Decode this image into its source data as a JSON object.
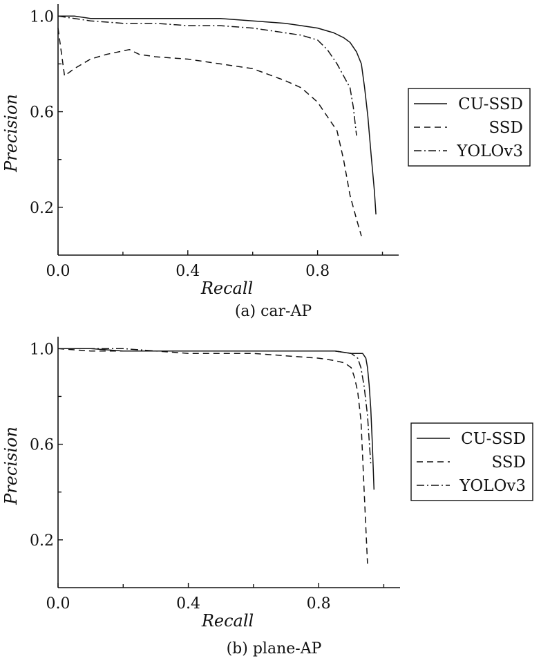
{
  "chart_data": [
    {
      "type": "line",
      "caption": "(a) car-AP",
      "xlabel": "Recall",
      "ylabel": "Precision",
      "xlim": [
        0,
        1.05
      ],
      "ylim": [
        0.0,
        1.05
      ],
      "xticks": [
        0.0,
        0.4,
        0.8
      ],
      "xtick_labels": [
        "0.0",
        "0.4",
        "0.8"
      ],
      "yticks": [
        0.2,
        0.6,
        1.0
      ],
      "ytick_labels": [
        "0.2",
        "0.6",
        "1.0"
      ],
      "legend_position": "right",
      "series": [
        {
          "name": "CU-SSD",
          "style": "solid",
          "x": [
            0.0,
            0.05,
            0.1,
            0.2,
            0.3,
            0.4,
            0.5,
            0.6,
            0.7,
            0.75,
            0.8,
            0.85,
            0.88,
            0.9,
            0.92,
            0.935,
            0.945,
            0.955,
            0.965,
            0.975,
            0.98
          ],
          "y": [
            1.0,
            1.0,
            0.99,
            0.99,
            0.99,
            0.99,
            0.99,
            0.98,
            0.97,
            0.96,
            0.95,
            0.93,
            0.91,
            0.89,
            0.85,
            0.8,
            0.7,
            0.58,
            0.42,
            0.27,
            0.17
          ]
        },
        {
          "name": "SSD",
          "style": "dashed",
          "x": [
            0.0,
            0.01,
            0.02,
            0.05,
            0.1,
            0.15,
            0.22,
            0.25,
            0.3,
            0.4,
            0.5,
            0.6,
            0.7,
            0.75,
            0.8,
            0.83,
            0.86,
            0.88,
            0.9,
            0.92,
            0.935
          ],
          "y": [
            0.95,
            0.85,
            0.75,
            0.78,
            0.82,
            0.84,
            0.86,
            0.84,
            0.83,
            0.82,
            0.8,
            0.78,
            0.73,
            0.7,
            0.64,
            0.58,
            0.52,
            0.4,
            0.25,
            0.15,
            0.08
          ]
        },
        {
          "name": "YOLOv3",
          "style": "dashdot",
          "x": [
            0.0,
            0.05,
            0.1,
            0.2,
            0.3,
            0.4,
            0.5,
            0.6,
            0.65,
            0.7,
            0.75,
            0.8,
            0.83,
            0.86,
            0.88,
            0.9,
            0.91,
            0.92
          ],
          "y": [
            1.0,
            0.99,
            0.98,
            0.97,
            0.97,
            0.96,
            0.96,
            0.95,
            0.94,
            0.93,
            0.92,
            0.9,
            0.86,
            0.8,
            0.75,
            0.7,
            0.62,
            0.5
          ]
        }
      ]
    },
    {
      "type": "line",
      "caption": "(b) plane-AP",
      "xlabel": "Recall",
      "ylabel": "Precision",
      "xlim": [
        0,
        1.05
      ],
      "ylim": [
        0.0,
        1.05
      ],
      "xticks": [
        0.0,
        0.4,
        0.8
      ],
      "xtick_labels": [
        "0.0",
        "0.4",
        "0.8"
      ],
      "yticks": [
        0.2,
        0.6,
        1.0
      ],
      "ytick_labels": [
        "0.2",
        "0.6",
        "1.0"
      ],
      "legend_position": "right",
      "series": [
        {
          "name": "CU-SSD",
          "style": "solid",
          "x": [
            0.0,
            0.1,
            0.2,
            0.3,
            0.4,
            0.5,
            0.6,
            0.7,
            0.8,
            0.85,
            0.9,
            0.92,
            0.935,
            0.945,
            0.95,
            0.955,
            0.96,
            0.965,
            0.97
          ],
          "y": [
            1.0,
            1.0,
            0.99,
            0.99,
            0.99,
            0.99,
            0.99,
            0.99,
            0.99,
            0.99,
            0.98,
            0.98,
            0.98,
            0.96,
            0.92,
            0.85,
            0.75,
            0.6,
            0.41
          ]
        },
        {
          "name": "SSD",
          "style": "dashed",
          "x": [
            0.0,
            0.1,
            0.2,
            0.3,
            0.4,
            0.5,
            0.6,
            0.7,
            0.8,
            0.85,
            0.88,
            0.9,
            0.91,
            0.92,
            0.93,
            0.935,
            0.94,
            0.945,
            0.95
          ],
          "y": [
            1.0,
            0.99,
            0.99,
            0.99,
            0.98,
            0.98,
            0.98,
            0.97,
            0.96,
            0.95,
            0.94,
            0.92,
            0.88,
            0.82,
            0.7,
            0.55,
            0.4,
            0.25,
            0.1
          ]
        },
        {
          "name": "YOLOv3",
          "style": "dashdot",
          "x": [
            0.0,
            0.1,
            0.2,
            0.3,
            0.4,
            0.5,
            0.55,
            0.6,
            0.7,
            0.8,
            0.85,
            0.9,
            0.92,
            0.93,
            0.94,
            0.95,
            0.955,
            0.96
          ],
          "y": [
            1.0,
            1.0,
            1.0,
            0.99,
            0.99,
            0.99,
            0.99,
            0.99,
            0.99,
            0.99,
            0.99,
            0.98,
            0.96,
            0.92,
            0.84,
            0.72,
            0.62,
            0.52
          ]
        }
      ]
    }
  ]
}
